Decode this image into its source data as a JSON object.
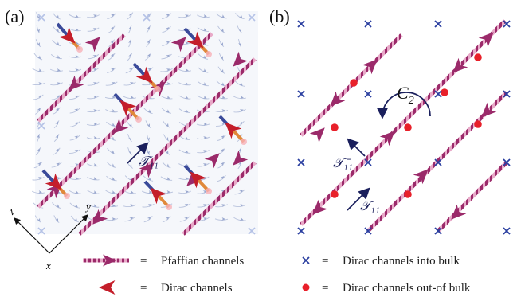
{
  "panel_a": {
    "label": "(a)",
    "translation_label": "𝒯₁₁",
    "axes": {
      "x": "x",
      "y": "y",
      "z": "z"
    }
  },
  "panel_b": {
    "label": "(b)",
    "rotation_label": "C",
    "rotation_sub": "2",
    "t11_label": "𝒯₁₁",
    "t1bar1_label": "𝒯₁̄₁"
  },
  "legend": {
    "pfaffian_eq": "=",
    "pfaffian": "Pfaffian channels",
    "dirac_eq": "=",
    "dirac": "Dirac channels",
    "into_eq": "=",
    "into": "Dirac channels into bulk",
    "outof_eq": "=",
    "outof": "Dirac channels out-of bulk"
  },
  "colors": {
    "pfaffian": "#9b2a6a",
    "pfaffian_light": "#e8a9c8",
    "dirac_red": "#c41e2a",
    "dirac_orange": "#e0883a",
    "dirac_blue": "#3a4a9a",
    "cross": "#2b3fa0",
    "dot": "#e8202a",
    "operator": "#1a1f5c",
    "flow": "#b9c3dd"
  }
}
